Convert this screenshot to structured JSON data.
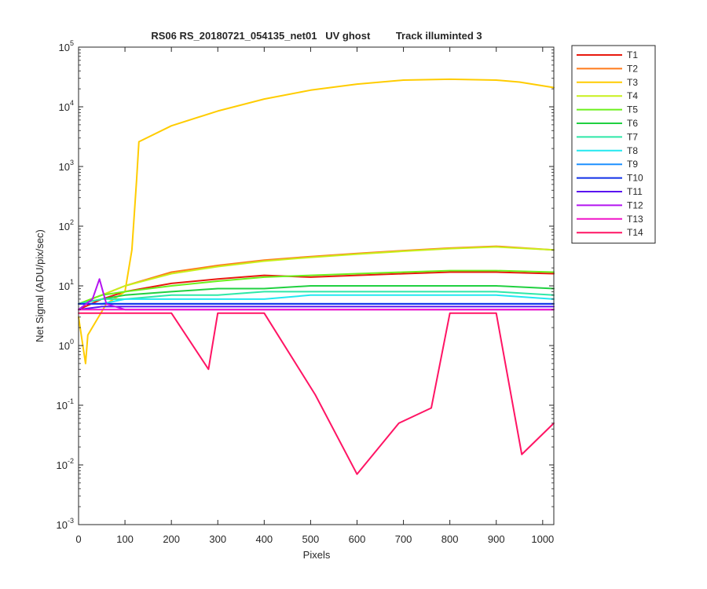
{
  "chart_data": {
    "type": "line",
    "title": "RS06 RS_20180721_054135_net01   UV ghost         Track illuminted 3",
    "xlabel": "Pixels",
    "ylabel": "Net Signal (ADU/pix/sec)",
    "xlim": [
      0,
      1024
    ],
    "ylim": [
      0.001,
      100000
    ],
    "yscale": "log",
    "grid": false,
    "legend_placement": "outside-top-right",
    "xticks": [
      "0",
      "100",
      "200",
      "300",
      "400",
      "500",
      "600",
      "700",
      "800",
      "900",
      "1000"
    ],
    "yticks": [
      {
        "base": "10",
        "exp": "-3"
      },
      {
        "base": "10",
        "exp": "-2"
      },
      {
        "base": "10",
        "exp": "-1"
      },
      {
        "base": "10",
        "exp": "0"
      },
      {
        "base": "10",
        "exp": "1"
      },
      {
        "base": "10",
        "exp": "2"
      },
      {
        "base": "10",
        "exp": "3"
      },
      {
        "base": "10",
        "exp": "4"
      },
      {
        "base": "10",
        "exp": "5"
      }
    ],
    "series": [
      {
        "name": "T1",
        "color": "#e8190e",
        "x": [
          0,
          50,
          100,
          200,
          300,
          400,
          500,
          600,
          700,
          800,
          900,
          1024
        ],
        "y": [
          4,
          6,
          8,
          11,
          13,
          15,
          14,
          15,
          16,
          17,
          17,
          16
        ]
      },
      {
        "name": "T2",
        "color": "#ff7a1a",
        "x": [
          0,
          50,
          100,
          200,
          300,
          400,
          500,
          600,
          700,
          800,
          900,
          1024
        ],
        "y": [
          5,
          7,
          10,
          17,
          22,
          27,
          31,
          35,
          39,
          43,
          46,
          40
        ]
      },
      {
        "name": "T3",
        "color": "#ffcc00",
        "x": [
          0,
          15,
          20,
          60,
          100,
          115,
          125,
          130,
          200,
          300,
          400,
          500,
          600,
          700,
          800,
          900,
          950,
          1024
        ],
        "y": [
          3,
          0.5,
          1.5,
          5,
          8,
          40,
          600,
          2600,
          4800,
          8500,
          13500,
          19000,
          24000,
          28000,
          29000,
          28000,
          26000,
          21000
        ]
      },
      {
        "name": "T4",
        "color": "#c8f01c",
        "x": [
          0,
          50,
          100,
          200,
          300,
          400,
          500,
          600,
          700,
          800,
          900,
          1024
        ],
        "y": [
          5,
          7,
          10,
          16,
          21,
          26,
          30,
          34,
          38,
          42,
          45,
          40
        ]
      },
      {
        "name": "T5",
        "color": "#6cf01c",
        "x": [
          0,
          50,
          100,
          200,
          300,
          400,
          500,
          600,
          700,
          800,
          900,
          1024
        ],
        "y": [
          5,
          7,
          8,
          10,
          12,
          14,
          15,
          16,
          17,
          18,
          18,
          17
        ]
      },
      {
        "name": "T6",
        "color": "#20d040",
        "x": [
          0,
          50,
          100,
          200,
          300,
          400,
          500,
          600,
          700,
          800,
          900,
          1024
        ],
        "y": [
          5,
          6,
          7,
          8,
          9,
          9,
          10,
          10,
          10,
          10,
          10,
          9
        ]
      },
      {
        "name": "T7",
        "color": "#2ee8a8",
        "x": [
          0,
          50,
          100,
          200,
          300,
          400,
          500,
          600,
          700,
          800,
          900,
          1024
        ],
        "y": [
          5,
          6,
          6,
          7,
          7,
          8,
          8,
          8,
          8,
          8,
          8,
          7
        ]
      },
      {
        "name": "T8",
        "color": "#22e8f0",
        "x": [
          0,
          50,
          100,
          200,
          300,
          400,
          500,
          600,
          700,
          800,
          900,
          1024
        ],
        "y": [
          5,
          5,
          6,
          6,
          6,
          6,
          7,
          7,
          7,
          7,
          7,
          6
        ]
      },
      {
        "name": "T9",
        "color": "#1e90ff",
        "x": [
          0,
          50,
          100,
          200,
          300,
          400,
          500,
          600,
          700,
          800,
          900,
          1024
        ],
        "y": [
          5,
          5,
          5,
          5,
          5,
          5,
          5,
          5,
          5,
          5,
          5,
          5
        ]
      },
      {
        "name": "T10",
        "color": "#1030e8",
        "x": [
          0,
          50,
          100,
          200,
          300,
          400,
          500,
          600,
          700,
          800,
          900,
          1024
        ],
        "y": [
          5,
          5,
          5,
          5,
          5,
          5,
          5,
          5,
          5,
          5,
          5,
          5
        ]
      },
      {
        "name": "T11",
        "color": "#5a14f0",
        "x": [
          0,
          50,
          100,
          200,
          300,
          400,
          500,
          600,
          700,
          800,
          900,
          1024
        ],
        "y": [
          4,
          4.5,
          4.5,
          4.5,
          4.5,
          4.5,
          4.5,
          4.5,
          4.5,
          4.5,
          4.5,
          4.5
        ]
      },
      {
        "name": "T12",
        "color": "#b414f0",
        "x": [
          0,
          30,
          45,
          60,
          100,
          200,
          300,
          400,
          500,
          600,
          700,
          800,
          900,
          1024
        ],
        "y": [
          4,
          6,
          13,
          5,
          4,
          4,
          4,
          4,
          4,
          4,
          4,
          4,
          4,
          4
        ]
      },
      {
        "name": "T13",
        "color": "#f014c8",
        "x": [
          0,
          50,
          100,
          200,
          300,
          400,
          500,
          600,
          700,
          800,
          900,
          1024
        ],
        "y": [
          4,
          4,
          4,
          4,
          4,
          4,
          4,
          4,
          4,
          4,
          4,
          4
        ]
      },
      {
        "name": "T14",
        "color": "#ff1464",
        "x": [
          0,
          50,
          100,
          200,
          280,
          300,
          400,
          510,
          600,
          690,
          760,
          800,
          900,
          955,
          1024
        ],
        "y": [
          3.5,
          3.5,
          3.5,
          3.5,
          0.4,
          3.5,
          3.5,
          0.15,
          0.007,
          0.05,
          0.09,
          3.5,
          3.5,
          0.015,
          0.05
        ]
      }
    ]
  }
}
